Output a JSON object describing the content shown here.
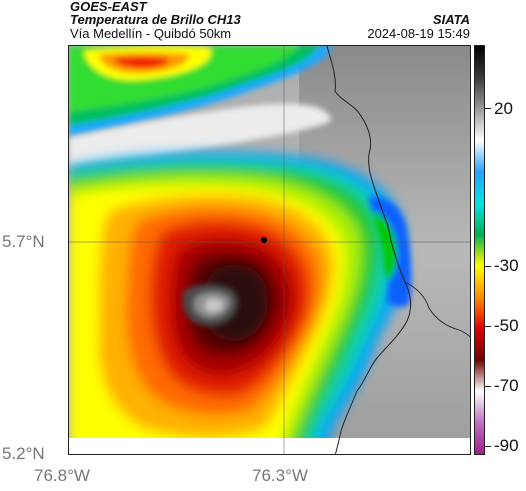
{
  "header": {
    "satellite": "GOES-EAST",
    "product": "Temperatura de Brillo CH13",
    "region": "Vía Medellín - Quibdó 50km",
    "agency": "SIATA",
    "datetime": "2024-08-19 15:49"
  },
  "axes": {
    "y_ticks": [
      "5.7°N",
      "5.2°N"
    ],
    "x_ticks": [
      "76.8°W",
      "76.3°W"
    ]
  },
  "colorbar": {
    "labels": [
      "20",
      "-30",
      "-50",
      "-70",
      "-90"
    ],
    "stops": [
      {
        "color": "#000000"
      },
      {
        "color": "#3a3a3a"
      },
      {
        "color": "#9a9a9a"
      },
      {
        "color": "#ffffff"
      },
      {
        "color": "#2aa0ff"
      },
      {
        "color": "#00e6e6"
      },
      {
        "color": "#00b050"
      },
      {
        "color": "#ffff00"
      },
      {
        "color": "#ff8c00"
      },
      {
        "color": "#e00000"
      },
      {
        "color": "#700000"
      },
      {
        "color": "#ffffff"
      },
      {
        "color": "#c070c0"
      },
      {
        "color": "#a0208a"
      }
    ]
  }
}
